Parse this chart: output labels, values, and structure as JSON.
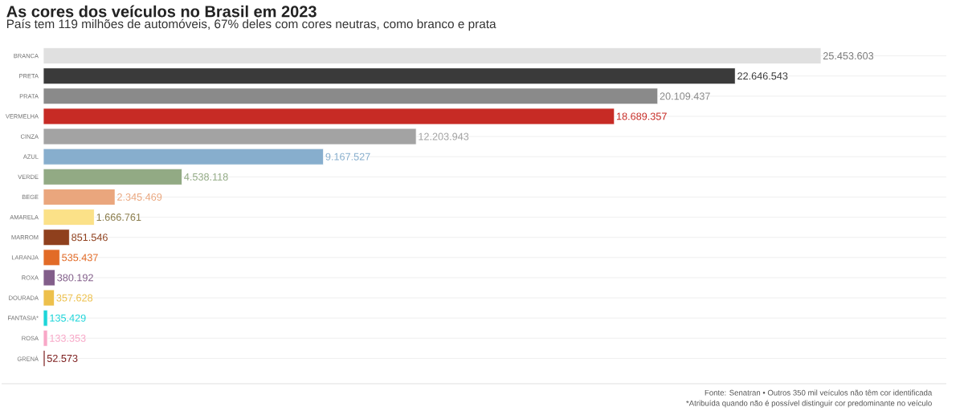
{
  "chart_data": {
    "type": "bar",
    "orientation": "horizontal",
    "title": "As cores dos veículos no Brasil em 2023",
    "subtitle": "País tem 119 milhões de automóveis, 67% deles com cores neutras, como branco e prata",
    "categories": [
      "BRANCA",
      "PRETA",
      "PRATA",
      "VERMELHA",
      "CINZA",
      "AZUL",
      "VERDE",
      "BEGE",
      "AMARELA",
      "MARROM",
      "LARANJA",
      "ROXA",
      "DOURADA",
      "FANTASIA*",
      "ROSA",
      "GRENÁ"
    ],
    "values": [
      25453603,
      22646543,
      20109437,
      18689357,
      12203943,
      9167527,
      4538118,
      2345469,
      1666761,
      851546,
      535437,
      380192,
      357628,
      135429,
      133353,
      52573
    ],
    "value_labels": [
      "25.453.603",
      "22.646.543",
      "20.109.437",
      "18.689.357",
      "12.203.943",
      "9.167.527",
      "4.538.118",
      "2.345.469",
      "1.666.761",
      "851.546",
      "535.437",
      "380.192",
      "357.628",
      "135.429",
      "133.353",
      "52.573"
    ],
    "colors": [
      "#e0e0e0",
      "#3a3a3a",
      "#8a8a8a",
      "#c72b25",
      "#a3a3a3",
      "#87aecd",
      "#92aa84",
      "#eaa67d",
      "#fbe188",
      "#8f401d",
      "#e26b27",
      "#825e8a",
      "#edc04c",
      "#1cd5d9",
      "#f8a7c7",
      "#7d1e1e"
    ],
    "grid": "y",
    "tick_labels": "y",
    "annotations": [
      "Fonte: Senatran • Outros 350 mil veículos não têm cor identificada",
      "*Atribuída quando não é possível distinguir cor predominante no veículo"
    ]
  }
}
